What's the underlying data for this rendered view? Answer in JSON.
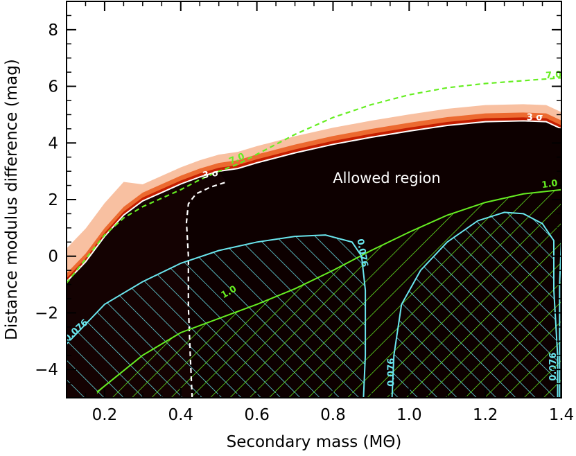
{
  "chart_data": {
    "type": "contour",
    "title": "",
    "xlabel": "Secondary mass (MΘ)",
    "ylabel": "Distance modulus difference (mag)",
    "xlim": [
      0.1,
      1.4
    ],
    "ylim": [
      -5,
      9
    ],
    "xticks": [
      0.2,
      0.4,
      0.6,
      0.8,
      1.0,
      1.2,
      1.4
    ],
    "xtick_labels": [
      "0.2",
      "0.4",
      "0.6",
      "0.8",
      "1.0",
      "1.2",
      "1.4"
    ],
    "yticks": [
      -4,
      -2,
      0,
      2,
      4,
      6,
      8
    ],
    "ytick_labels": [
      "−4",
      "−2",
      "0",
      "2",
      "4",
      "6",
      "8"
    ],
    "region_label": "Allowed region",
    "colors": {
      "dark_fill": "#0d0000",
      "edge_red": "#cc2200",
      "edge_orange": "#f07a3a",
      "contour_white": "#ffffff",
      "green": "#66ee22",
      "cyan": "#6ae6ee"
    },
    "contours": [
      {
        "label": "3 σ",
        "color": "#ffffff",
        "style": "solid",
        "points": [
          [
            0.1,
            -0.9
          ],
          [
            0.15,
            -0.2
          ],
          [
            0.2,
            0.7
          ],
          [
            0.25,
            1.45
          ],
          [
            0.3,
            1.95
          ],
          [
            0.35,
            2.25
          ],
          [
            0.4,
            2.55
          ],
          [
            0.45,
            2.8
          ],
          [
            0.5,
            3.0
          ],
          [
            0.55,
            3.1
          ],
          [
            0.6,
            3.3
          ],
          [
            0.7,
            3.65
          ],
          [
            0.8,
            3.95
          ],
          [
            0.9,
            4.2
          ],
          [
            1.0,
            4.42
          ],
          [
            1.1,
            4.62
          ],
          [
            1.2,
            4.75
          ],
          [
            1.3,
            4.78
          ],
          [
            1.36,
            4.75
          ],
          [
            1.4,
            4.5
          ]
        ]
      },
      {
        "label": "3 σ",
        "color": "#ffffff",
        "style": "dashed",
        "points": [
          [
            0.43,
            -5.0
          ],
          [
            0.425,
            -3.5
          ],
          [
            0.42,
            -1.8
          ],
          [
            0.42,
            0.0
          ],
          [
            0.415,
            1.2
          ],
          [
            0.42,
            1.85
          ],
          [
            0.44,
            2.2
          ],
          [
            0.48,
            2.45
          ],
          [
            0.52,
            2.62
          ]
        ]
      },
      {
        "label": "7.0",
        "color": "#66ee22",
        "style": "dashed",
        "points": [
          [
            0.1,
            -0.95
          ],
          [
            0.15,
            -0.1
          ],
          [
            0.2,
            0.75
          ],
          [
            0.25,
            1.35
          ],
          [
            0.3,
            1.75
          ],
          [
            0.35,
            2.05
          ],
          [
            0.4,
            2.35
          ],
          [
            0.45,
            2.7
          ],
          [
            0.5,
            3.0
          ],
          [
            0.55,
            3.25
          ],
          [
            0.6,
            3.6
          ],
          [
            0.65,
            3.95
          ],
          [
            0.7,
            4.3
          ],
          [
            0.8,
            4.9
          ],
          [
            0.9,
            5.35
          ],
          [
            1.0,
            5.7
          ],
          [
            1.1,
            5.95
          ],
          [
            1.2,
            6.1
          ],
          [
            1.3,
            6.2
          ],
          [
            1.4,
            6.3
          ]
        ]
      },
      {
        "label": "1.0",
        "color": "#66ee22",
        "style": "solid",
        "points": [
          [
            0.18,
            -4.8
          ],
          [
            0.3,
            -3.5
          ],
          [
            0.4,
            -2.7
          ],
          [
            0.5,
            -2.2
          ],
          [
            0.6,
            -1.7
          ],
          [
            0.7,
            -1.15
          ],
          [
            0.8,
            -0.5
          ],
          [
            0.9,
            0.2
          ],
          [
            1.0,
            0.85
          ],
          [
            1.1,
            1.45
          ],
          [
            1.2,
            1.9
          ],
          [
            1.3,
            2.2
          ],
          [
            1.4,
            2.35
          ]
        ]
      },
      {
        "label": "0.076",
        "color": "#6ae6ee",
        "style": "solid",
        "points": [
          [
            0.1,
            -3.1
          ],
          [
            0.15,
            -2.4
          ],
          [
            0.2,
            -1.7
          ],
          [
            0.3,
            -0.9
          ],
          [
            0.4,
            -0.25
          ],
          [
            0.5,
            0.2
          ],
          [
            0.6,
            0.5
          ],
          [
            0.7,
            0.7
          ],
          [
            0.78,
            0.75
          ],
          [
            0.85,
            0.5
          ],
          [
            0.875,
            0.0
          ],
          [
            0.885,
            -1.2
          ],
          [
            0.885,
            -3.5
          ],
          [
            0.88,
            -5.0
          ]
        ]
      },
      {
        "label": "0.076",
        "color": "#6ae6ee",
        "style": "solid",
        "points": [
          [
            0.955,
            -5.0
          ],
          [
            0.96,
            -3.5
          ],
          [
            0.98,
            -1.7
          ],
          [
            1.03,
            -0.5
          ],
          [
            1.1,
            0.5
          ],
          [
            1.18,
            1.25
          ],
          [
            1.25,
            1.55
          ],
          [
            1.3,
            1.5
          ],
          [
            1.35,
            1.15
          ],
          [
            1.38,
            0.55
          ],
          [
            1.38,
            -1.2
          ],
          [
            1.39,
            -3.5
          ],
          [
            1.39,
            -5.0
          ]
        ]
      },
      {
        "label": "0.076",
        "color": "#6ae6ee",
        "style": "solid",
        "points": [
          [
            1.395,
            -5.0
          ],
          [
            1.395,
            -3.0
          ],
          [
            1.395,
            -1.0
          ],
          [
            1.4,
            0.6
          ],
          [
            1.405,
            2.4
          ]
        ]
      }
    ],
    "contour_text_labels": [
      "0.076",
      "0.076",
      "0.076",
      "0.076",
      "1.0",
      "1.0",
      "7.0",
      "7.0",
      "3 σ",
      "3 σ"
    ]
  }
}
